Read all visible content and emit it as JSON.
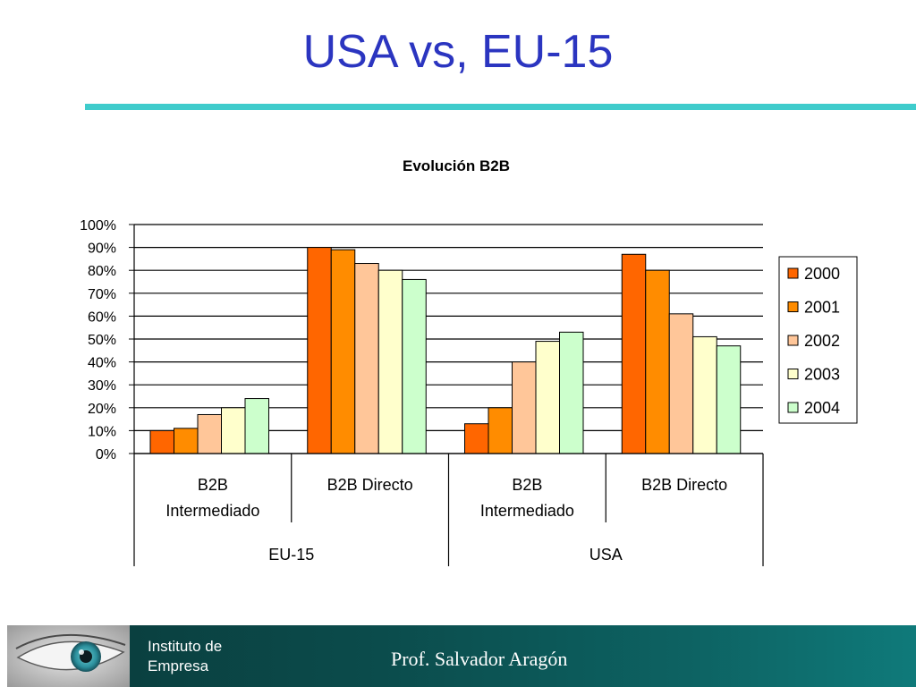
{
  "slide": {
    "title": "USA vs, EU-15",
    "accent_color": "#3fcccc"
  },
  "chart_data": {
    "type": "bar",
    "title": "Evolución B2B",
    "groups": [
      {
        "label": "EU-15",
        "categories": [
          "B2B Intermediado",
          "B2B Directo"
        ]
      },
      {
        "label": "USA",
        "categories": [
          "B2B Intermediado",
          "B2B Directo"
        ]
      }
    ],
    "categories": [
      "EU-15 / B2B Intermediado",
      "EU-15 / B2B Directo",
      "USA / B2B Intermediado",
      "USA / B2B Directo"
    ],
    "series": [
      {
        "name": "2000",
        "color": "#ff6600",
        "values": [
          10,
          90,
          13,
          87
        ]
      },
      {
        "name": "2001",
        "color": "#ff8c00",
        "values": [
          11,
          89,
          20,
          80
        ]
      },
      {
        "name": "2002",
        "color": "#ffc699",
        "values": [
          17,
          83,
          40,
          61
        ]
      },
      {
        "name": "2003",
        "color": "#ffffcc",
        "values": [
          20,
          80,
          49,
          51
        ]
      },
      {
        "name": "2004",
        "color": "#ccffcc",
        "values": [
          24,
          76,
          53,
          47
        ]
      }
    ],
    "yticks": [
      "0%",
      "10%",
      "20%",
      "30%",
      "40%",
      "50%",
      "60%",
      "70%",
      "80%",
      "90%",
      "100%"
    ],
    "ylim": [
      0,
      100
    ],
    "grid": true,
    "legend_position": "right"
  },
  "footer": {
    "institute": "Instituto de Empresa",
    "author": "Prof.  Salvador Aragón",
    "logo": "eye-logo"
  }
}
